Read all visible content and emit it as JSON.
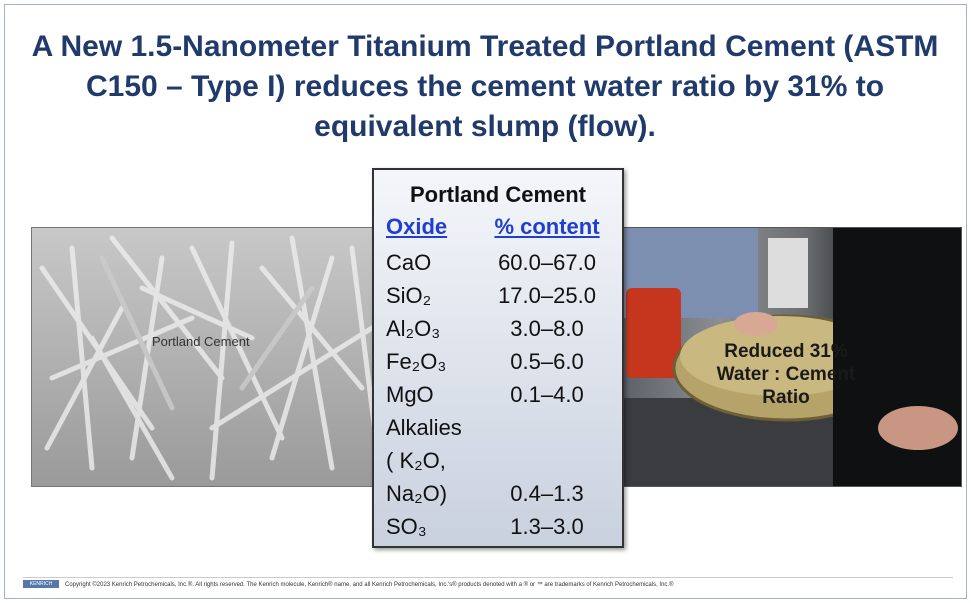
{
  "header": {
    "title": "A New 1.5-Nanometer Titanium Treated Portland Cement (ASTM C150 – Type I) reduces the cement water ratio by 31% to equivalent slump (flow)."
  },
  "images": {
    "left_label": "Portland Cement",
    "right_label": "Reduced 31% Water : Cement Ratio"
  },
  "table": {
    "title": "Portland Cement",
    "columns": [
      "Oxide",
      "% content"
    ],
    "rows": [
      [
        "CaO",
        "60.0–67.0"
      ],
      [
        "SiO₂",
        "17.0–25.0"
      ],
      [
        "Al₂O₃",
        "3.0–8.0"
      ],
      [
        "Fe₂O₃",
        "0.5–6.0"
      ],
      [
        "MgO",
        "0.1–4.0"
      ],
      [
        "Alkalies\n( K₂O,\n  Na₂O)",
        "0.4–1.3"
      ],
      [
        "SO₃",
        "1.3–3.0"
      ]
    ]
  },
  "footer": {
    "logo": "KENRICH",
    "text": "Copyright ©2023 Kenrich Petrochemicals, Inc.®. All rights reserved. The Kenrich molecule, Kenrich® name, and all Kenrich Petrochemicals, Inc.'s® products denoted with a ® or ™ are trademarks of Kenrich Petrochemicals, Inc.®"
  }
}
